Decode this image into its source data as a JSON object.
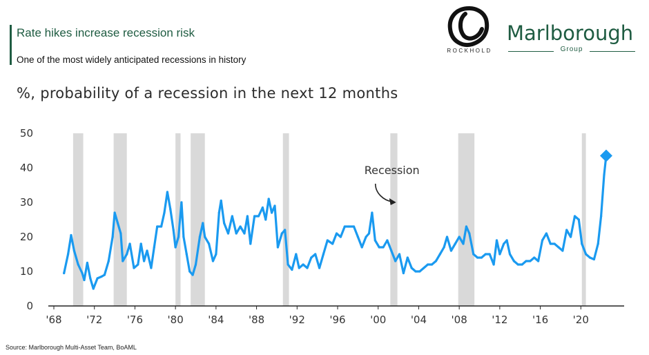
{
  "header": {
    "title": "Rate hikes increase recession risk",
    "subtitle": "One of the most widely anticipated recessions in history"
  },
  "logos": {
    "rockhold": "ROCKHOLD",
    "marlborough_name": "Marlborough",
    "marlborough_group": "Group"
  },
  "source": "Source: Marlborough Multi-Asset Team, BoAML",
  "colors": {
    "brand_green": "#1f5c42",
    "series": "#1a9af0",
    "recession_band": "#d9d9d9"
  },
  "chart_data": {
    "type": "line",
    "title": "%, probability of a recession in the next 12 months",
    "xlabel": "",
    "ylabel": "",
    "ylim": [
      0,
      50
    ],
    "xlim": [
      1968.0,
      2024.0
    ],
    "yticks": [
      "0",
      "10",
      "20",
      "30",
      "40",
      "50"
    ],
    "xticks": [
      {
        "x": 1968,
        "label": "'68"
      },
      {
        "x": 1972,
        "label": "'72"
      },
      {
        "x": 1976,
        "label": "'76"
      },
      {
        "x": 1980,
        "label": "'80"
      },
      {
        "x": 1984,
        "label": "'84"
      },
      {
        "x": 1988,
        "label": "'88"
      },
      {
        "x": 1992,
        "label": "'92"
      },
      {
        "x": 1996,
        "label": "'96"
      },
      {
        "x": 2000,
        "label": "'00"
      },
      {
        "x": 2004,
        "label": "'04"
      },
      {
        "x": 2008,
        "label": "'08"
      },
      {
        "x": 2012,
        "label": "'12"
      },
      {
        "x": 2016,
        "label": "'16"
      },
      {
        "x": 2020,
        "label": "'20"
      }
    ],
    "grid": false,
    "recessions": [
      [
        1969.9,
        1970.9
      ],
      [
        1973.9,
        1975.2
      ],
      [
        1980.0,
        1980.5
      ],
      [
        1981.5,
        1982.9
      ],
      [
        1990.6,
        1991.2
      ],
      [
        2001.2,
        2001.9
      ],
      [
        2007.9,
        2009.5
      ],
      [
        2020.1,
        2020.5
      ]
    ],
    "annotation": {
      "text": "Recession",
      "x": 2001.5,
      "y": 37
    },
    "series": [
      {
        "highlight_last": true,
        "points": [
          [
            1969.0,
            9.5
          ],
          [
            1969.4,
            15
          ],
          [
            1969.7,
            20.5
          ],
          [
            1970.0,
            16
          ],
          [
            1970.4,
            12
          ],
          [
            1970.8,
            9.5
          ],
          [
            1971.0,
            7.5
          ],
          [
            1971.3,
            12.5
          ],
          [
            1971.6,
            8
          ],
          [
            1971.9,
            5
          ],
          [
            1972.3,
            8
          ],
          [
            1972.7,
            8.5
          ],
          [
            1973.0,
            9
          ],
          [
            1973.4,
            13
          ],
          [
            1973.8,
            20
          ],
          [
            1974.0,
            27
          ],
          [
            1974.3,
            24
          ],
          [
            1974.6,
            21
          ],
          [
            1974.8,
            13
          ],
          [
            1975.2,
            15
          ],
          [
            1975.5,
            18
          ],
          [
            1975.9,
            11
          ],
          [
            1976.3,
            12
          ],
          [
            1976.6,
            18
          ],
          [
            1976.9,
            13
          ],
          [
            1977.2,
            16
          ],
          [
            1977.6,
            11
          ],
          [
            1977.9,
            17
          ],
          [
            1978.2,
            23
          ],
          [
            1978.6,
            23
          ],
          [
            1978.9,
            27
          ],
          [
            1979.2,
            33
          ],
          [
            1979.5,
            28
          ],
          [
            1979.8,
            22
          ],
          [
            1980.0,
            17
          ],
          [
            1980.3,
            20
          ],
          [
            1980.6,
            30
          ],
          [
            1980.8,
            20
          ],
          [
            1981.1,
            15
          ],
          [
            1981.4,
            10
          ],
          [
            1981.7,
            9
          ],
          [
            1982.0,
            12
          ],
          [
            1982.4,
            20
          ],
          [
            1982.7,
            24
          ],
          [
            1982.9,
            20
          ],
          [
            1983.3,
            18
          ],
          [
            1983.7,
            13
          ],
          [
            1984.0,
            15
          ],
          [
            1984.3,
            27
          ],
          [
            1984.5,
            30.5
          ],
          [
            1984.8,
            24
          ],
          [
            1985.2,
            21
          ],
          [
            1985.6,
            26
          ],
          [
            1986.0,
            21
          ],
          [
            1986.4,
            23
          ],
          [
            1986.8,
            21
          ],
          [
            1987.1,
            26
          ],
          [
            1987.4,
            18
          ],
          [
            1987.8,
            26
          ],
          [
            1988.2,
            26
          ],
          [
            1988.6,
            28.5
          ],
          [
            1988.9,
            25
          ],
          [
            1989.2,
            31
          ],
          [
            1989.5,
            27
          ],
          [
            1989.8,
            29
          ],
          [
            1990.1,
            17
          ],
          [
            1990.5,
            21
          ],
          [
            1990.8,
            22
          ],
          [
            1991.1,
            12
          ],
          [
            1991.5,
            10.5
          ],
          [
            1991.9,
            15
          ],
          [
            1992.2,
            11
          ],
          [
            1992.6,
            12
          ],
          [
            1993.0,
            11
          ],
          [
            1993.4,
            14
          ],
          [
            1993.8,
            15
          ],
          [
            1994.2,
            11
          ],
          [
            1994.6,
            15
          ],
          [
            1995.0,
            19
          ],
          [
            1995.5,
            18
          ],
          [
            1995.9,
            21
          ],
          [
            1996.3,
            20
          ],
          [
            1996.7,
            23
          ],
          [
            1997.1,
            23
          ],
          [
            1997.6,
            23
          ],
          [
            1998.0,
            20
          ],
          [
            1998.4,
            17
          ],
          [
            1998.8,
            20
          ],
          [
            1999.1,
            21
          ],
          [
            1999.4,
            27
          ],
          [
            1999.7,
            19
          ],
          [
            2000.1,
            17
          ],
          [
            2000.5,
            17
          ],
          [
            2000.9,
            19
          ],
          [
            2001.3,
            16
          ],
          [
            2001.7,
            13
          ],
          [
            2002.1,
            15
          ],
          [
            2002.5,
            9.5
          ],
          [
            2002.9,
            14
          ],
          [
            2003.3,
            11
          ],
          [
            2003.7,
            10
          ],
          [
            2004.1,
            10
          ],
          [
            2004.5,
            11
          ],
          [
            2004.9,
            12
          ],
          [
            2005.3,
            12
          ],
          [
            2005.7,
            13
          ],
          [
            2006.1,
            15
          ],
          [
            2006.5,
            17
          ],
          [
            2006.8,
            20
          ],
          [
            2007.2,
            16
          ],
          [
            2007.6,
            18
          ],
          [
            2008.0,
            20
          ],
          [
            2008.4,
            18
          ],
          [
            2008.7,
            23
          ],
          [
            2009.0,
            21
          ],
          [
            2009.4,
            15
          ],
          [
            2009.8,
            14
          ],
          [
            2010.2,
            14
          ],
          [
            2010.6,
            15
          ],
          [
            2011.0,
            15
          ],
          [
            2011.4,
            12
          ],
          [
            2011.7,
            19
          ],
          [
            2012.0,
            15
          ],
          [
            2012.4,
            18
          ],
          [
            2012.7,
            19
          ],
          [
            2013.0,
            15
          ],
          [
            2013.4,
            13
          ],
          [
            2013.8,
            12
          ],
          [
            2014.2,
            12
          ],
          [
            2014.6,
            13
          ],
          [
            2015.0,
            13
          ],
          [
            2015.4,
            14
          ],
          [
            2015.8,
            13
          ],
          [
            2016.2,
            19
          ],
          [
            2016.6,
            21
          ],
          [
            2017.0,
            18
          ],
          [
            2017.4,
            18
          ],
          [
            2017.8,
            17
          ],
          [
            2018.2,
            16
          ],
          [
            2018.6,
            22
          ],
          [
            2019.0,
            20
          ],
          [
            2019.4,
            26
          ],
          [
            2019.8,
            25
          ],
          [
            2020.1,
            18
          ],
          [
            2020.5,
            15
          ],
          [
            2020.9,
            14
          ],
          [
            2021.3,
            13.5
          ],
          [
            2021.7,
            18
          ],
          [
            2022.0,
            26
          ],
          [
            2022.3,
            38
          ],
          [
            2022.5,
            43.5
          ]
        ]
      }
    ]
  }
}
